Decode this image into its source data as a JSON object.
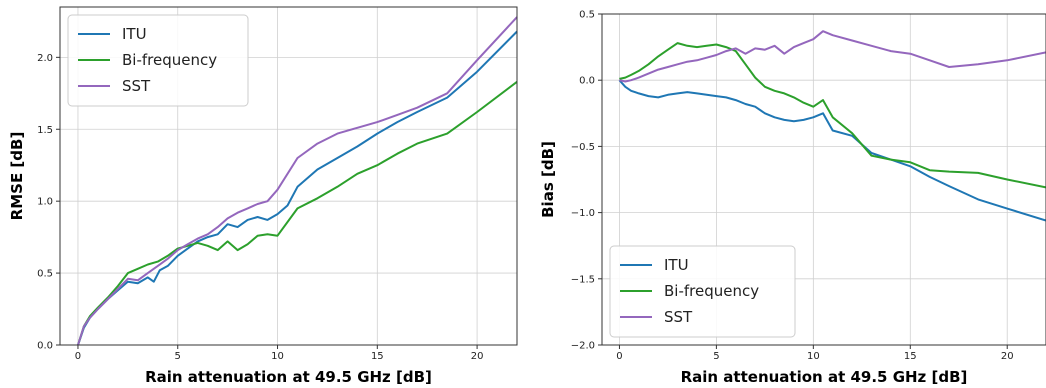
{
  "chart_data": [
    {
      "type": "line",
      "title": "",
      "xlabel": "Rain attenuation at 49.5 GHz [dB]",
      "ylabel": "RMSE [dB]",
      "xlim": [
        -0.9,
        22
      ],
      "ylim": [
        0,
        2.35
      ],
      "xticks": [
        0,
        5,
        10,
        15,
        20
      ],
      "yticks": [
        0.0,
        0.5,
        1.0,
        1.5,
        2.0
      ],
      "xtick_labels": [
        "0",
        "5",
        "10",
        "15",
        "20"
      ],
      "ytick_labels": [
        "0.0",
        "0.5",
        "1.0",
        "1.5",
        "2.0"
      ],
      "grid": true,
      "legend_position": "top-left",
      "series": [
        {
          "name": "ITU",
          "color": "#1f77b4",
          "x": [
            0,
            0.3,
            0.6,
            1.0,
            1.5,
            2.0,
            2.5,
            3.0,
            3.5,
            3.8,
            4.1,
            4.5,
            5.0,
            5.5,
            6.0,
            6.5,
            7.0,
            7.5,
            8.0,
            8.5,
            9.0,
            9.5,
            10.0,
            10.5,
            11.0,
            12.0,
            13.0,
            14.0,
            15.0,
            16.0,
            17.0,
            18.5,
            20.0,
            22.0
          ],
          "y": [
            0.0,
            0.12,
            0.19,
            0.25,
            0.32,
            0.38,
            0.44,
            0.43,
            0.47,
            0.44,
            0.52,
            0.55,
            0.62,
            0.67,
            0.72,
            0.75,
            0.77,
            0.84,
            0.82,
            0.87,
            0.89,
            0.87,
            0.91,
            0.97,
            1.1,
            1.22,
            1.3,
            1.38,
            1.47,
            1.55,
            1.62,
            1.72,
            1.9,
            2.18
          ]
        },
        {
          "name": "Bi-frequency",
          "color": "#2ca02c",
          "x": [
            0,
            0.3,
            0.6,
            1.0,
            1.5,
            2.0,
            2.5,
            3.0,
            3.5,
            4.0,
            4.5,
            5.0,
            5.5,
            6.0,
            6.5,
            7.0,
            7.5,
            8.0,
            8.5,
            9.0,
            9.5,
            10.0,
            11.0,
            12.0,
            13.0,
            14.0,
            15.0,
            16.0,
            17.0,
            18.5,
            20.0,
            22.0
          ],
          "y": [
            0.0,
            0.13,
            0.2,
            0.26,
            0.33,
            0.41,
            0.5,
            0.53,
            0.56,
            0.58,
            0.62,
            0.67,
            0.69,
            0.71,
            0.69,
            0.66,
            0.72,
            0.66,
            0.7,
            0.76,
            0.77,
            0.76,
            0.95,
            1.02,
            1.1,
            1.19,
            1.25,
            1.33,
            1.4,
            1.47,
            1.62,
            1.83
          ]
        },
        {
          "name": "SST",
          "color": "#9467bd",
          "x": [
            0,
            0.3,
            0.6,
            1.0,
            1.5,
            2.0,
            2.5,
            3.0,
            3.5,
            4.0,
            4.5,
            5.0,
            5.5,
            6.0,
            6.5,
            7.0,
            7.5,
            8.0,
            8.5,
            9.0,
            9.5,
            10.0,
            11.0,
            12.0,
            13.0,
            14.0,
            15.0,
            16.0,
            17.0,
            18.5,
            20.0,
            22.0
          ],
          "y": [
            0.0,
            0.13,
            0.19,
            0.25,
            0.32,
            0.39,
            0.46,
            0.45,
            0.5,
            0.55,
            0.6,
            0.66,
            0.7,
            0.74,
            0.77,
            0.82,
            0.88,
            0.92,
            0.95,
            0.98,
            1.0,
            1.08,
            1.3,
            1.4,
            1.47,
            1.51,
            1.55,
            1.6,
            1.65,
            1.75,
            1.98,
            2.28
          ]
        }
      ]
    },
    {
      "type": "line",
      "title": "",
      "xlabel": "Rain attenuation at 49.5 GHz [dB]",
      "ylabel": "Bias [dB]",
      "xlim": [
        -0.9,
        22
      ],
      "ylim": [
        -2.0,
        0.5
      ],
      "xticks": [
        0,
        5,
        10,
        15,
        20
      ],
      "yticks": [
        -2.0,
        -1.5,
        -1.0,
        -0.5,
        0.0,
        0.5
      ],
      "xtick_labels": [
        "0",
        "5",
        "10",
        "15",
        "20"
      ],
      "ytick_labels": [
        "−2.0",
        "−1.5",
        "−1.0",
        "−0.5",
        "0.0",
        "0.5"
      ],
      "grid": true,
      "legend_position": "bottom-left",
      "series": [
        {
          "name": "ITU",
          "color": "#1f77b4",
          "x": [
            0,
            0.3,
            0.6,
            1.0,
            1.5,
            2.0,
            2.5,
            3.0,
            3.5,
            4.0,
            4.5,
            5.0,
            5.5,
            6.0,
            6.5,
            7.0,
            7.5,
            8.0,
            8.5,
            9.0,
            9.5,
            10.0,
            10.5,
            11.0,
            12.0,
            13.0,
            14.0,
            15.0,
            16.0,
            17.0,
            18.5,
            20.0,
            22.0
          ],
          "y": [
            0.0,
            -0.05,
            -0.08,
            -0.1,
            -0.12,
            -0.13,
            -0.11,
            -0.1,
            -0.09,
            -0.1,
            -0.11,
            -0.12,
            -0.13,
            -0.15,
            -0.18,
            -0.2,
            -0.25,
            -0.28,
            -0.3,
            -0.31,
            -0.3,
            -0.28,
            -0.25,
            -0.38,
            -0.42,
            -0.55,
            -0.6,
            -0.65,
            -0.73,
            -0.8,
            -0.9,
            -0.97,
            -1.06
          ]
        },
        {
          "name": "Bi-frequency",
          "color": "#2ca02c",
          "x": [
            0,
            0.3,
            0.6,
            1.0,
            1.5,
            2.0,
            2.5,
            3.0,
            3.5,
            4.0,
            4.5,
            5.0,
            5.5,
            6.0,
            6.5,
            7.0,
            7.5,
            8.0,
            8.5,
            9.0,
            9.5,
            10.0,
            10.5,
            11.0,
            12.0,
            13.0,
            14.0,
            15.0,
            16.0,
            17.0,
            18.5,
            20.0,
            22.0
          ],
          "y": [
            0.01,
            0.02,
            0.04,
            0.07,
            0.12,
            0.18,
            0.23,
            0.28,
            0.26,
            0.25,
            0.26,
            0.27,
            0.25,
            0.22,
            0.12,
            0.02,
            -0.05,
            -0.08,
            -0.1,
            -0.13,
            -0.17,
            -0.2,
            -0.15,
            -0.28,
            -0.4,
            -0.57,
            -0.6,
            -0.62,
            -0.68,
            -0.69,
            -0.7,
            -0.75,
            -0.81
          ]
        },
        {
          "name": "SST",
          "color": "#9467bd",
          "x": [
            0,
            0.3,
            0.6,
            1.0,
            1.5,
            2.0,
            2.5,
            3.0,
            3.5,
            4.0,
            4.5,
            5.0,
            5.5,
            6.0,
            6.5,
            7.0,
            7.5,
            8.0,
            8.5,
            9.0,
            9.5,
            10.0,
            10.5,
            11.0,
            12.0,
            13.0,
            14.0,
            15.0,
            16.0,
            17.0,
            18.5,
            20.0,
            22.0
          ],
          "y": [
            0.0,
            -0.01,
            0.0,
            0.02,
            0.05,
            0.08,
            0.1,
            0.12,
            0.14,
            0.15,
            0.17,
            0.19,
            0.22,
            0.24,
            0.2,
            0.24,
            0.23,
            0.26,
            0.2,
            0.25,
            0.28,
            0.31,
            0.37,
            0.34,
            0.3,
            0.26,
            0.22,
            0.2,
            0.15,
            0.1,
            0.12,
            0.15,
            0.21
          ]
        }
      ]
    }
  ]
}
